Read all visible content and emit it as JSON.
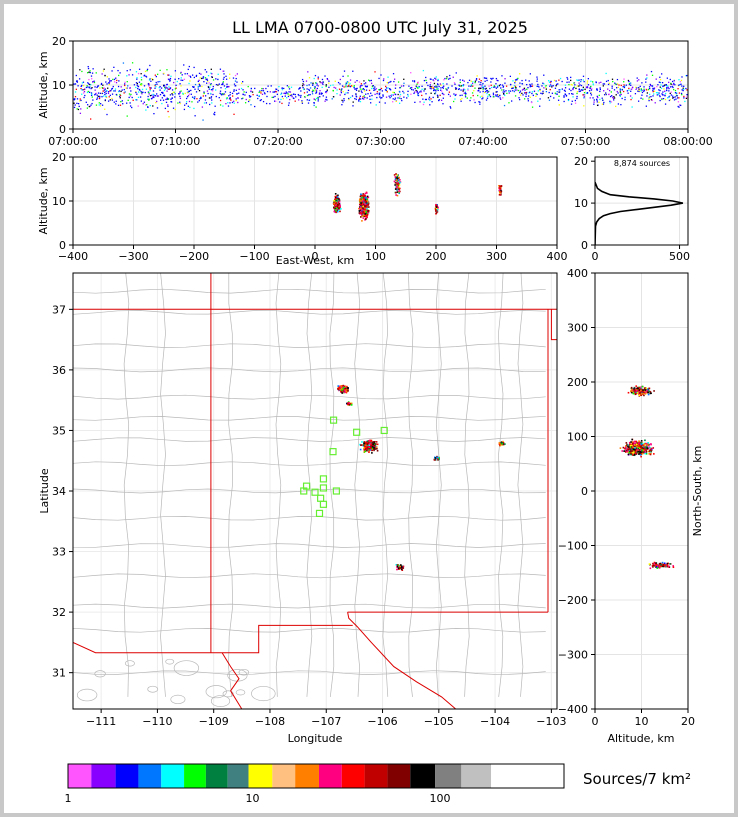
{
  "title": "LL LMA 0700-0800 UTC July 31, 2025",
  "time_panel": {
    "ylabel": "Altitude, km",
    "yticks": [
      "0",
      "10",
      "20"
    ],
    "xticks": [
      "07:00:00",
      "07:10:00",
      "07:20:00",
      "07:30:00",
      "07:40:00",
      "07:50:00",
      "08:00:00"
    ]
  },
  "ew_panel": {
    "ylabel": "Altitude, km",
    "xlabel": "East-West, km",
    "yticks": [
      "0",
      "10",
      "20"
    ],
    "xticks": [
      "−400",
      "−300",
      "−200",
      "−100",
      "0",
      "100",
      "200",
      "300",
      "400"
    ]
  },
  "histogram_panel": {
    "label": "8,874 sources",
    "yticks": [
      "0",
      "10",
      "20"
    ],
    "xticks": [
      "0",
      "500"
    ]
  },
  "map_panel": {
    "xlabel": "Longitude",
    "ylabel": "Latitude",
    "lat_ticks": [
      "31",
      "32",
      "33",
      "34",
      "35",
      "36",
      "37"
    ],
    "lon_ticks": [
      "−111",
      "−110",
      "−109",
      "−108",
      "−107",
      "−106",
      "−105",
      "−104",
      "−103"
    ]
  },
  "ns_panel": {
    "ylabel": "North-South, km",
    "xlabel": "Altitude, km",
    "yticks": [
      "−400",
      "−300",
      "−200",
      "−100",
      "0",
      "100",
      "200",
      "300",
      "400"
    ],
    "xticks": [
      "0",
      "10",
      "20"
    ]
  },
  "colorbar": {
    "label": "Sources/7 km²",
    "ticks": [
      "1",
      "10",
      "100"
    ],
    "colors": [
      "#ff55ff",
      "#8800ff",
      "#0000ff",
      "#0077ff",
      "#00ffff",
      "#00ff00",
      "#008040",
      "#408080",
      "#ffff00",
      "#ffc080",
      "#ff8000",
      "#ff0080",
      "#ff0000",
      "#c00000",
      "#800000",
      "#000000",
      "#808080",
      "#c0c0c0",
      "#ffffff"
    ]
  },
  "chart_data": [
    {
      "type": "scatter",
      "panel": "altitude-vs-time",
      "xlabel": "",
      "ylabel": "Altitude, km",
      "xlim": [
        "07:00:00",
        "08:00:00"
      ],
      "ylim": [
        0,
        20
      ],
      "note_density": "source density colored per colorbar",
      "activity_bands": [
        {
          "t_min": 0,
          "t_max": 16,
          "alt_min": 3,
          "alt_max": 15
        },
        {
          "t_min": 16,
          "t_max": 22,
          "alt_min": 5,
          "alt_max": 11
        },
        {
          "t_min": 22,
          "t_max": 60,
          "alt_min": 5,
          "alt_max": 13
        }
      ]
    },
    {
      "type": "scatter",
      "panel": "altitude-vs-east-west",
      "xlabel": "East-West, km",
      "ylabel": "Altitude, km",
      "xlim": [
        -400,
        400
      ],
      "ylim": [
        0,
        20
      ],
      "clusters": [
        {
          "ew": 35,
          "alt": 9.5
        },
        {
          "ew": 80,
          "alt": 9
        },
        {
          "ew": 135,
          "alt": 14
        },
        {
          "ew": 200,
          "alt": 8.5
        },
        {
          "ew": 305,
          "alt": 12.5
        }
      ]
    },
    {
      "type": "line",
      "panel": "altitude-histogram",
      "title": "8,874 sources",
      "xlim": [
        0,
        550
      ],
      "ylim": [
        0,
        21
      ],
      "x": [
        0,
        3,
        10,
        25,
        50,
        90,
        150,
        250,
        350,
        450,
        520,
        460,
        350,
        200,
        90,
        40,
        15,
        5,
        0
      ],
      "y": [
        0,
        4.5,
        5.5,
        6.3,
        7,
        7.5,
        8,
        8.5,
        9,
        9.5,
        10,
        10.5,
        11,
        11.5,
        12,
        12.8,
        13.5,
        14.5,
        15
      ]
    },
    {
      "type": "scatter",
      "panel": "plan-view-map",
      "xlabel": "Longitude",
      "ylabel": "Latitude",
      "xlim": [
        -111.5,
        -102.9
      ],
      "ylim": [
        30.4,
        37.6
      ],
      "stations": [
        [
          -106.87,
          35.17
        ],
        [
          -106.46,
          34.97
        ],
        [
          -105.97,
          35.0
        ],
        [
          -106.88,
          34.65
        ],
        [
          -107.35,
          34.08
        ],
        [
          -107.05,
          34.2
        ],
        [
          -107.4,
          34.0
        ],
        [
          -107.2,
          33.98
        ],
        [
          -107.05,
          34.05
        ],
        [
          -106.82,
          34.0
        ],
        [
          -107.1,
          33.88
        ],
        [
          -107.05,
          33.78
        ],
        [
          -107.12,
          33.63
        ]
      ],
      "clusters": [
        {
          "lon": -106.7,
          "lat": 35.7
        },
        {
          "lon": -106.6,
          "lat": 35.45
        },
        {
          "lon": -106.25,
          "lat": 34.75
        },
        {
          "lon": -105.05,
          "lat": 34.55
        },
        {
          "lon": -103.9,
          "lat": 34.8
        },
        {
          "lon": -105.7,
          "lat": 32.75
        }
      ]
    },
    {
      "type": "scatter",
      "panel": "north-south-vs-altitude",
      "xlabel": "Altitude, km",
      "ylabel": "North-South, km",
      "xlim": [
        0,
        20
      ],
      "ylim": [
        -400,
        400
      ],
      "clusters": [
        {
          "alt": 9.5,
          "ns": 185
        },
        {
          "alt": 9,
          "ns": 80
        },
        {
          "alt": 14,
          "ns": -135
        }
      ]
    }
  ]
}
